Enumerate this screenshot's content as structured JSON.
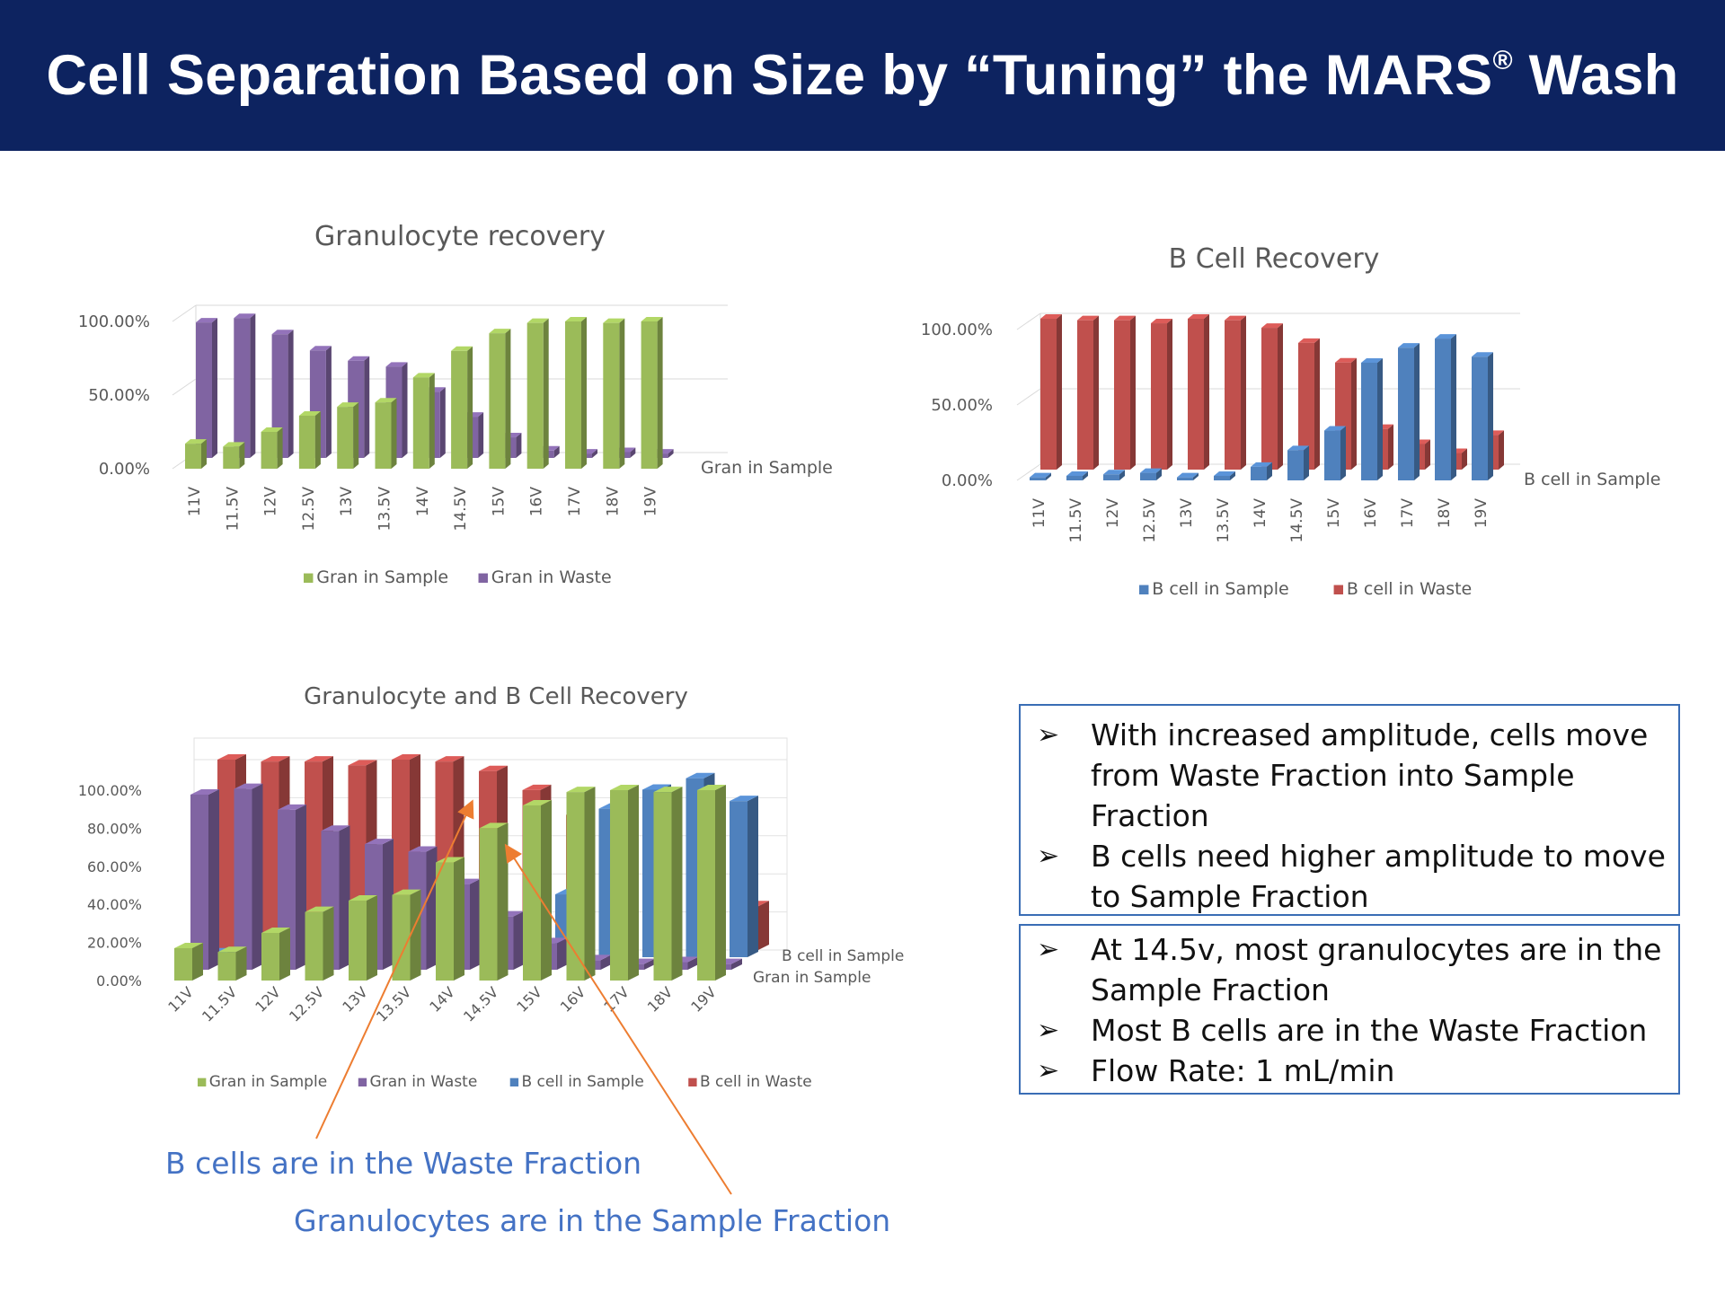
{
  "header": {
    "title_main": "Cell Separation Based on Size by “Tuning” the MARS",
    "title_reg": "®",
    "title_end": " Wash"
  },
  "colors": {
    "header_bg": "#0d2360",
    "gran_sample": "#9bbb59",
    "gran_waste": "#8064a2",
    "bcell_sample": "#4f81bd",
    "bcell_waste": "#c0504d",
    "callout_text": "#4472c4",
    "arrow": "#ed7d31",
    "box_border": "#3a6db5"
  },
  "chart_data": [
    {
      "id": "gran",
      "type": "bar",
      "title": "Granulocyte recovery",
      "categories": [
        "11V",
        "11.5V",
        "12V",
        "12.5V",
        "13V",
        "13.5V",
        "14V",
        "14.5V",
        "15V",
        "16V",
        "17V",
        "18V",
        "19V"
      ],
      "yticks": [
        "100.00%",
        "50.00%",
        "0.00%"
      ],
      "ylim": [
        0,
        100
      ],
      "depth_label": "Gran in Sample",
      "series": [
        {
          "name": "Gran in Sample",
          "color": "#9bbb59",
          "values": [
            17,
            15,
            25,
            36,
            42,
            45,
            62,
            80,
            92,
            99,
            100,
            99,
            100
          ]
        },
        {
          "name": "Gran in Waste",
          "color": "#8064a2",
          "values": [
            92,
            95,
            84,
            73,
            66,
            62,
            45,
            28,
            14,
            5,
            3,
            4,
            3
          ]
        }
      ],
      "legend": "bottom",
      "grid": true
    },
    {
      "id": "bcell",
      "type": "bar",
      "title": "B Cell Recovery",
      "categories": [
        "11V",
        "11.5V",
        "12V",
        "12.5V",
        "13V",
        "13.5V",
        "14V",
        "14.5V",
        "15V",
        "16V",
        "17V",
        "18V",
        "19V"
      ],
      "yticks": [
        "100.00%",
        "50.00%",
        "0.00%"
      ],
      "ylim": [
        0,
        100
      ],
      "depth_label": "B cell in Sample",
      "series": [
        {
          "name": "B cell in Sample",
          "color": "#4f81bd",
          "values": [
            2,
            3,
            4,
            5,
            2,
            3,
            9,
            20,
            33,
            78,
            88,
            94,
            82
          ]
        },
        {
          "name": "B cell in Waste",
          "color": "#c0504d",
          "values": [
            100,
            99,
            99,
            97,
            100,
            99,
            94,
            84,
            71,
            27,
            17,
            11,
            23
          ]
        }
      ],
      "legend": "bottom",
      "grid": true
    },
    {
      "id": "combo",
      "type": "bar",
      "title": "Granulocyte and B Cell Recovery",
      "categories": [
        "11V",
        "11.5V",
        "12V",
        "12.5V",
        "13V",
        "13.5V",
        "14V",
        "14.5V",
        "15V",
        "16V",
        "17V",
        "18V",
        "19V"
      ],
      "yticks": [
        "100.00%",
        "80.00%",
        "60.00%",
        "40.00%",
        "20.00%",
        "0.00%"
      ],
      "ylim": [
        0,
        100
      ],
      "depth_labels": [
        "B cell in Sample",
        "Gran in Sample"
      ],
      "series": [
        {
          "name": "Gran in Sample",
          "color": "#9bbb59",
          "values": [
            17,
            15,
            25,
            36,
            42,
            45,
            62,
            80,
            92,
            99,
            100,
            99,
            100
          ]
        },
        {
          "name": "Gran in Waste",
          "color": "#8064a2",
          "values": [
            92,
            95,
            84,
            73,
            66,
            62,
            45,
            28,
            14,
            5,
            3,
            4,
            3
          ]
        },
        {
          "name": "B cell in Sample",
          "color": "#4f81bd",
          "values": [
            2,
            3,
            4,
            5,
            2,
            3,
            9,
            20,
            33,
            78,
            88,
            94,
            82
          ]
        },
        {
          "name": "B cell in Waste",
          "color": "#c0504d",
          "values": [
            100,
            99,
            99,
            97,
            100,
            99,
            94,
            84,
            71,
            27,
            17,
            11,
            23
          ]
        }
      ],
      "legend": "bottom",
      "grid": true
    }
  ],
  "summary_box_1": [
    "With increased amplitude, cells move from Waste Fraction into Sample Fraction",
    "B cells need higher amplitude to move to Sample Fraction"
  ],
  "summary_box_2": [
    "At 14.5v, most granulocytes are in the Sample Fraction",
    "Most B cells are in the Waste Fraction",
    "Flow Rate: 1 mL/min"
  ],
  "bullet_glyph": "➢",
  "callouts": {
    "bcell_waste": "B cells are in the Waste Fraction",
    "gran_sample": "Granulocytes are in the Sample Fraction"
  }
}
